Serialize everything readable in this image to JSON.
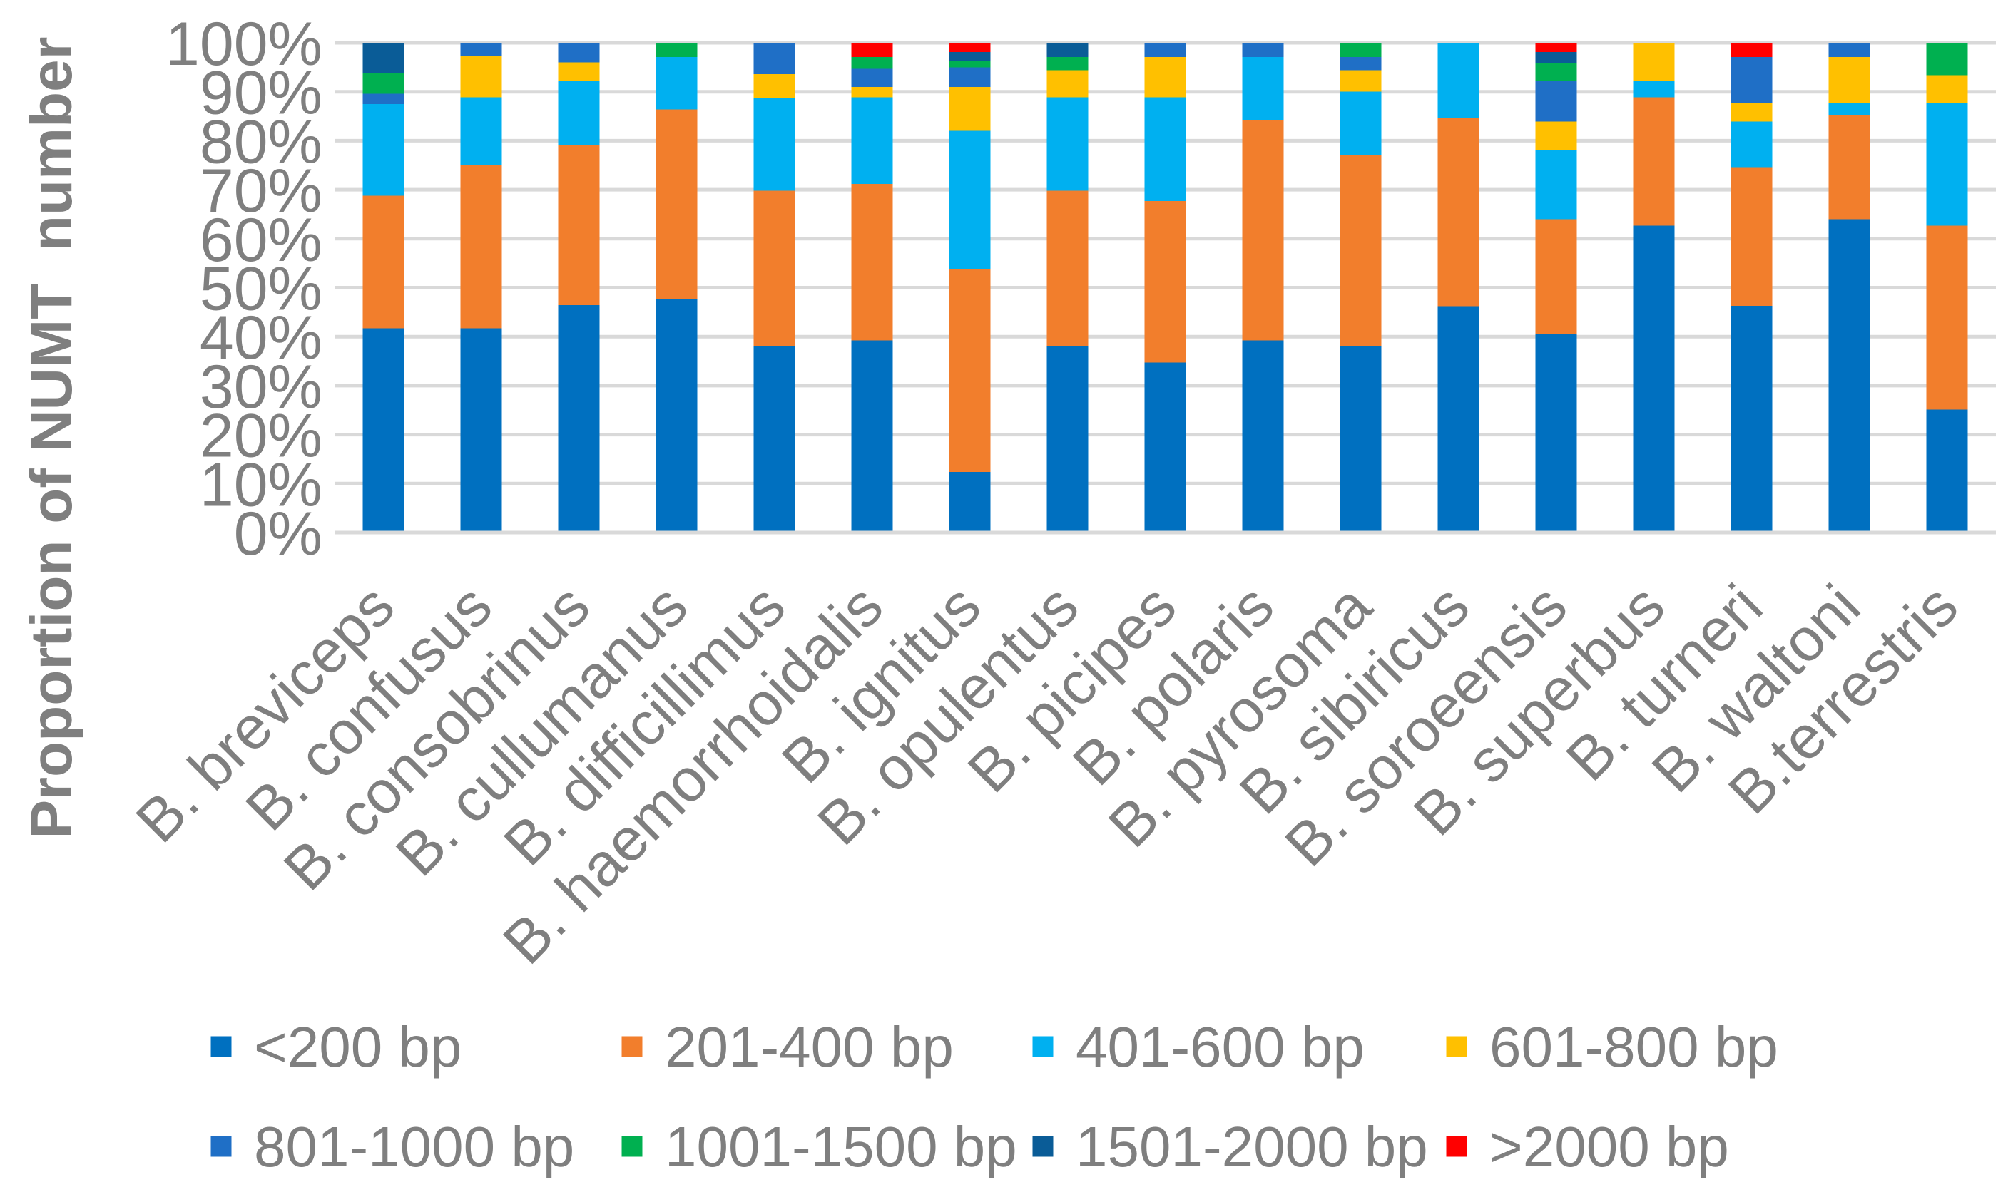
{
  "chart_data": {
    "type": "bar",
    "stacked": true,
    "percent_stacked": true,
    "ylabel": "Proportion of NUMT  number",
    "ylim": [
      0,
      100
    ],
    "yticks": [
      0,
      10,
      20,
      30,
      40,
      50,
      60,
      70,
      80,
      90,
      100
    ],
    "ytick_labels": [
      "0%",
      "10%",
      "20%",
      "30%",
      "40%",
      "50%",
      "60%",
      "70%",
      "80%",
      "90%",
      "100%"
    ],
    "grid": true,
    "legend": "bottom",
    "categories": [
      "B. breviceps",
      "B. confusus",
      "B. consobrinus",
      "B. cullumanus",
      "B. difficillimus",
      "B. haemorrhoidalis",
      "B. ignitus",
      "B. opulentus",
      "B. picipes",
      "B. polaris",
      "B. pyrosoma",
      "B. sibiricus",
      "B. soroeensis",
      "B. superbus",
      "B. turneri",
      "B. waltoni",
      "B.terrestris"
    ],
    "series": [
      {
        "name": "<200 bp",
        "color": "#0070C0",
        "values": [
          41.7,
          41.7,
          46.4,
          47.6,
          38.1,
          39.2,
          12.4,
          38.1,
          34.7,
          39.2,
          38.1,
          46.2,
          40.5,
          62.7,
          46.3,
          64.0,
          25.1
        ]
      },
      {
        "name": "201-400 bp",
        "color": "#F27E2C",
        "values": [
          27.1,
          33.3,
          32.7,
          38.8,
          31.7,
          32.0,
          41.3,
          31.7,
          33.0,
          44.9,
          38.9,
          38.5,
          23.5,
          26.2,
          28.3,
          21.2,
          37.6
        ]
      },
      {
        "name": "401-600 bp",
        "color": "#00B0F0",
        "values": [
          18.7,
          13.9,
          13.2,
          10.7,
          19.0,
          17.7,
          28.3,
          19.1,
          21.2,
          13.0,
          13.0,
          15.3,
          14.0,
          3.4,
          9.3,
          2.4,
          24.9
        ]
      },
      {
        "name": "601-800 bp",
        "color": "#FFC000",
        "values": [
          0,
          8.3,
          3.7,
          0,
          4.8,
          2.1,
          9.0,
          5.5,
          8.2,
          0,
          4.4,
          0,
          5.9,
          7.7,
          3.7,
          9.5,
          5.8
        ]
      },
      {
        "name": "801-1000 bp",
        "color": "#1F6FC6",
        "values": [
          2.1,
          2.8,
          4.0,
          0,
          6.4,
          3.7,
          4.0,
          0,
          2.9,
          2.9,
          2.7,
          0,
          8.4,
          0,
          9.5,
          2.9,
          0
        ]
      },
      {
        "name": "1001-1500 bp",
        "color": "#00B050",
        "values": [
          4.2,
          0,
          0,
          2.9,
          0,
          2.4,
          1.3,
          2.7,
          0,
          0,
          2.9,
          0,
          3.5,
          0,
          0,
          0,
          6.6
        ]
      },
      {
        "name": "1501-2000 bp",
        "color": "#0A5C97",
        "values": [
          6.2,
          0,
          0,
          0,
          0,
          0,
          1.8,
          2.9,
          0,
          0,
          0,
          0,
          2.3,
          0,
          0,
          0,
          0
        ]
      },
      {
        "name": ">2000 bp",
        "color": "#FF0000",
        "values": [
          0,
          0,
          0,
          0,
          0,
          2.9,
          1.9,
          0,
          0,
          0,
          0,
          0,
          1.9,
          0,
          2.9,
          0,
          0
        ]
      }
    ]
  }
}
